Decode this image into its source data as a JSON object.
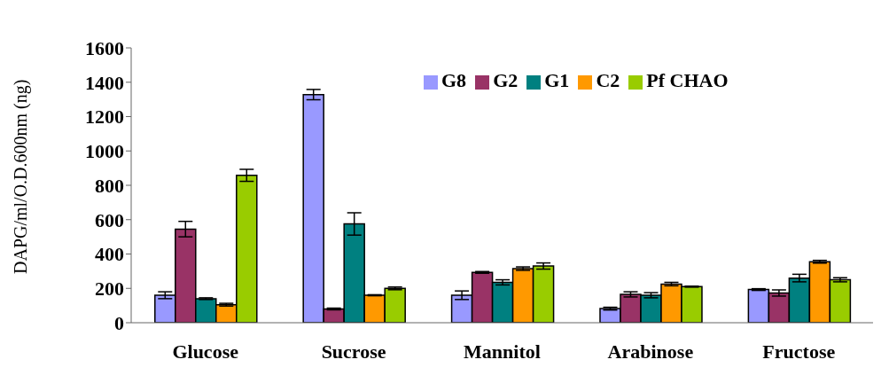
{
  "chart_data": {
    "type": "bar",
    "ylabel": "DAPG/ml/O.D.600nm (ng)",
    "categories": [
      "Glucose",
      "Sucrose",
      "Mannitol",
      "Arabinose",
      "Fructose"
    ],
    "series": [
      {
        "name": "G8",
        "color": "#9999ff",
        "values": [
          160,
          1328,
          160,
          82,
          193
        ],
        "errors": [
          20,
          30,
          25,
          8,
          5
        ]
      },
      {
        "name": "G2",
        "color": "#993366",
        "values": [
          545,
          80,
          293,
          165,
          173
        ],
        "errors": [
          45,
          5,
          5,
          15,
          18
        ]
      },
      {
        "name": "G1",
        "color": "#008080",
        "values": [
          140,
          575,
          235,
          160,
          260
        ],
        "errors": [
          5,
          65,
          15,
          15,
          22
        ]
      },
      {
        "name": "C2",
        "color": "#ff9900",
        "values": [
          105,
          160,
          315,
          225,
          355
        ],
        "errors": [
          8,
          3,
          10,
          10,
          8
        ]
      },
      {
        "name": "Pf CHAO",
        "color": "#99cc00",
        "values": [
          858,
          200,
          330,
          210,
          250
        ],
        "errors": [
          35,
          8,
          18,
          3,
          12
        ]
      }
    ],
    "ylim": [
      0,
      1600
    ],
    "yticks": [
      0,
      200,
      400,
      600,
      800,
      1000,
      1200,
      1400,
      1600
    ],
    "grid": false,
    "legend": "top right"
  }
}
